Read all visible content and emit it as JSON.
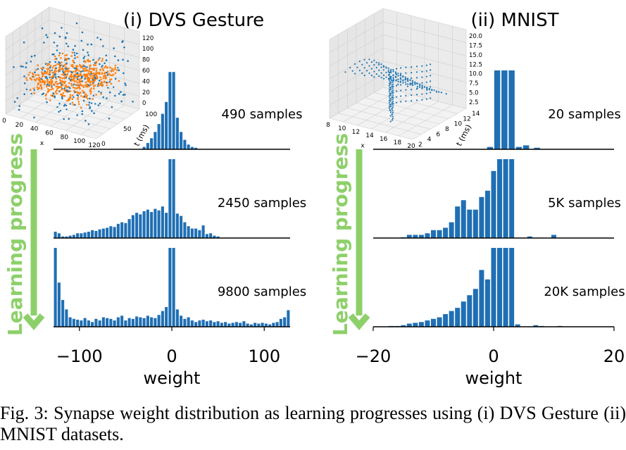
{
  "figure": {
    "caption": "Fig. 3: Synapse weight distribution as learning progresses using (i) DVS Gesture (ii) MNIST datasets.",
    "side_label": "Learning progress",
    "bar_color": "#1f6fb4",
    "arrow_color": "#8dd06a",
    "scatter_colors": [
      "#1f77b4",
      "#ff7f0e"
    ]
  },
  "chart_data": [
    {
      "type": "bar",
      "title": "(i) DVS Gesture",
      "xlabel": "weight",
      "xlim": [
        -128,
        128
      ],
      "xticks": [
        -100,
        0,
        100
      ],
      "xtick_labels": [
        "−100",
        "0",
        "100"
      ],
      "inset": {
        "type": "scatter3d",
        "x_label": "x",
        "y_label": "t (ms)",
        "x_ticks": [
          "0",
          "20",
          "40",
          "60",
          "80",
          "100",
          "120"
        ],
        "y_ticks": [
          "0",
          "50",
          "100"
        ],
        "z_ticks": [
          "0",
          "20",
          "40",
          "60",
          "80",
          "100",
          "120"
        ]
      },
      "panels": [
        {
          "label": "490 samples",
          "x": [
            -30,
            -26,
            -22,
            -18,
            -14,
            -10,
            -6,
            -2,
            2,
            6,
            10,
            14,
            18,
            22,
            26
          ],
          "values": [
            3,
            8,
            14,
            22,
            32,
            45,
            60,
            98,
            98,
            40,
            22,
            12,
            6,
            3,
            2
          ]
        },
        {
          "label": "2450 samples",
          "x": [
            -126,
            -122,
            -118,
            -114,
            -110,
            -106,
            -102,
            -98,
            -94,
            -90,
            -86,
            -82,
            -78,
            -74,
            -70,
            -66,
            -62,
            -58,
            -54,
            -50,
            -46,
            -42,
            -38,
            -34,
            -30,
            -26,
            -22,
            -18,
            -14,
            -10,
            -6,
            -2,
            2,
            6,
            10,
            14,
            18,
            22,
            26,
            30,
            34,
            38,
            42,
            46,
            50
          ],
          "values": [
            8,
            6,
            2,
            2,
            3,
            4,
            6,
            6,
            7,
            8,
            10,
            9,
            11,
            12,
            13,
            15,
            14,
            18,
            20,
            19,
            24,
            29,
            32,
            30,
            34,
            36,
            33,
            37,
            35,
            40,
            32,
            100,
            100,
            31,
            28,
            20,
            15,
            12,
            12,
            10,
            16,
            5,
            6,
            3,
            2
          ]
        },
        {
          "label": "9800 samples",
          "x": [
            -126,
            -122,
            -118,
            -114,
            -110,
            -106,
            -102,
            -98,
            -94,
            -90,
            -86,
            -82,
            -78,
            -74,
            -70,
            -66,
            -62,
            -58,
            -54,
            -50,
            -46,
            -42,
            -38,
            -34,
            -30,
            -26,
            -22,
            -18,
            -14,
            -10,
            -6,
            -2,
            2,
            6,
            10,
            14,
            18,
            22,
            26,
            30,
            34,
            38,
            42,
            46,
            50,
            54,
            58,
            62,
            66,
            70,
            74,
            78,
            82,
            86,
            90,
            94,
            98,
            102,
            106,
            110,
            114,
            118,
            122,
            126
          ],
          "values": [
            100,
            56,
            34,
            22,
            12,
            10,
            9,
            8,
            11,
            8,
            6,
            10,
            8,
            12,
            11,
            10,
            8,
            12,
            14,
            8,
            11,
            10,
            13,
            12,
            11,
            14,
            12,
            11,
            15,
            20,
            25,
            100,
            100,
            22,
            14,
            10,
            12,
            8,
            6,
            8,
            9,
            7,
            8,
            6,
            7,
            5,
            6,
            4,
            5,
            6,
            5,
            7,
            4,
            3,
            5,
            4,
            5,
            4,
            3,
            5,
            6,
            10,
            12,
            21
          ]
        }
      ]
    },
    {
      "type": "bar",
      "title": "(ii) MNIST",
      "xlabel": "weight",
      "xlim": [
        -20,
        20
      ],
      "xticks": [
        -20,
        0,
        20
      ],
      "xtick_labels": [
        "−20",
        "0",
        "20"
      ],
      "inset": {
        "type": "scatter3d",
        "x_label": "x",
        "y_label": "t (ms)",
        "x_ticks": [
          "8",
          "10",
          "12",
          "14",
          "16",
          "18",
          "20"
        ],
        "y_ticks": [
          "2",
          "4",
          "6",
          "8",
          "10",
          "12",
          "14"
        ],
        "z_ticks": [
          "2.5",
          "5.0",
          "7.5",
          "10.0",
          "12.5",
          "15.0",
          "17.5",
          "20.0"
        ]
      },
      "panels": [
        {
          "label": "20 samples",
          "x": [
            -0.6,
            0.6,
            1.8,
            3.0,
            4.2,
            5.4,
            7.2
          ],
          "values": [
            3,
            100,
            100,
            100,
            3,
            5,
            2
          ]
        },
        {
          "label": "5K samples",
          "x": [
            -15,
            -14,
            -13,
            -12,
            -11,
            -10,
            -9,
            -8,
            -7,
            -6,
            -5,
            -4,
            -3,
            -2,
            -1,
            0,
            1,
            2,
            3,
            6,
            10
          ],
          "values": [
            1,
            4,
            4,
            4,
            6,
            10,
            10,
            13,
            20,
            40,
            48,
            36,
            36,
            52,
            60,
            85,
            100,
            100,
            100,
            2,
            4
          ]
        },
        {
          "label": "20K samples",
          "x": [
            -17,
            -16,
            -15,
            -14,
            -13,
            -12,
            -11,
            -10,
            -9,
            -8,
            -7,
            -6,
            -5,
            -4,
            -3,
            -2,
            -1,
            0,
            1,
            2,
            3,
            4,
            7,
            8,
            11
          ],
          "values": [
            1,
            1,
            2,
            4,
            5,
            6,
            8,
            10,
            12,
            16,
            20,
            24,
            32,
            40,
            48,
            72,
            60,
            100,
            100,
            100,
            100,
            3,
            2,
            1,
            1
          ]
        }
      ]
    }
  ]
}
